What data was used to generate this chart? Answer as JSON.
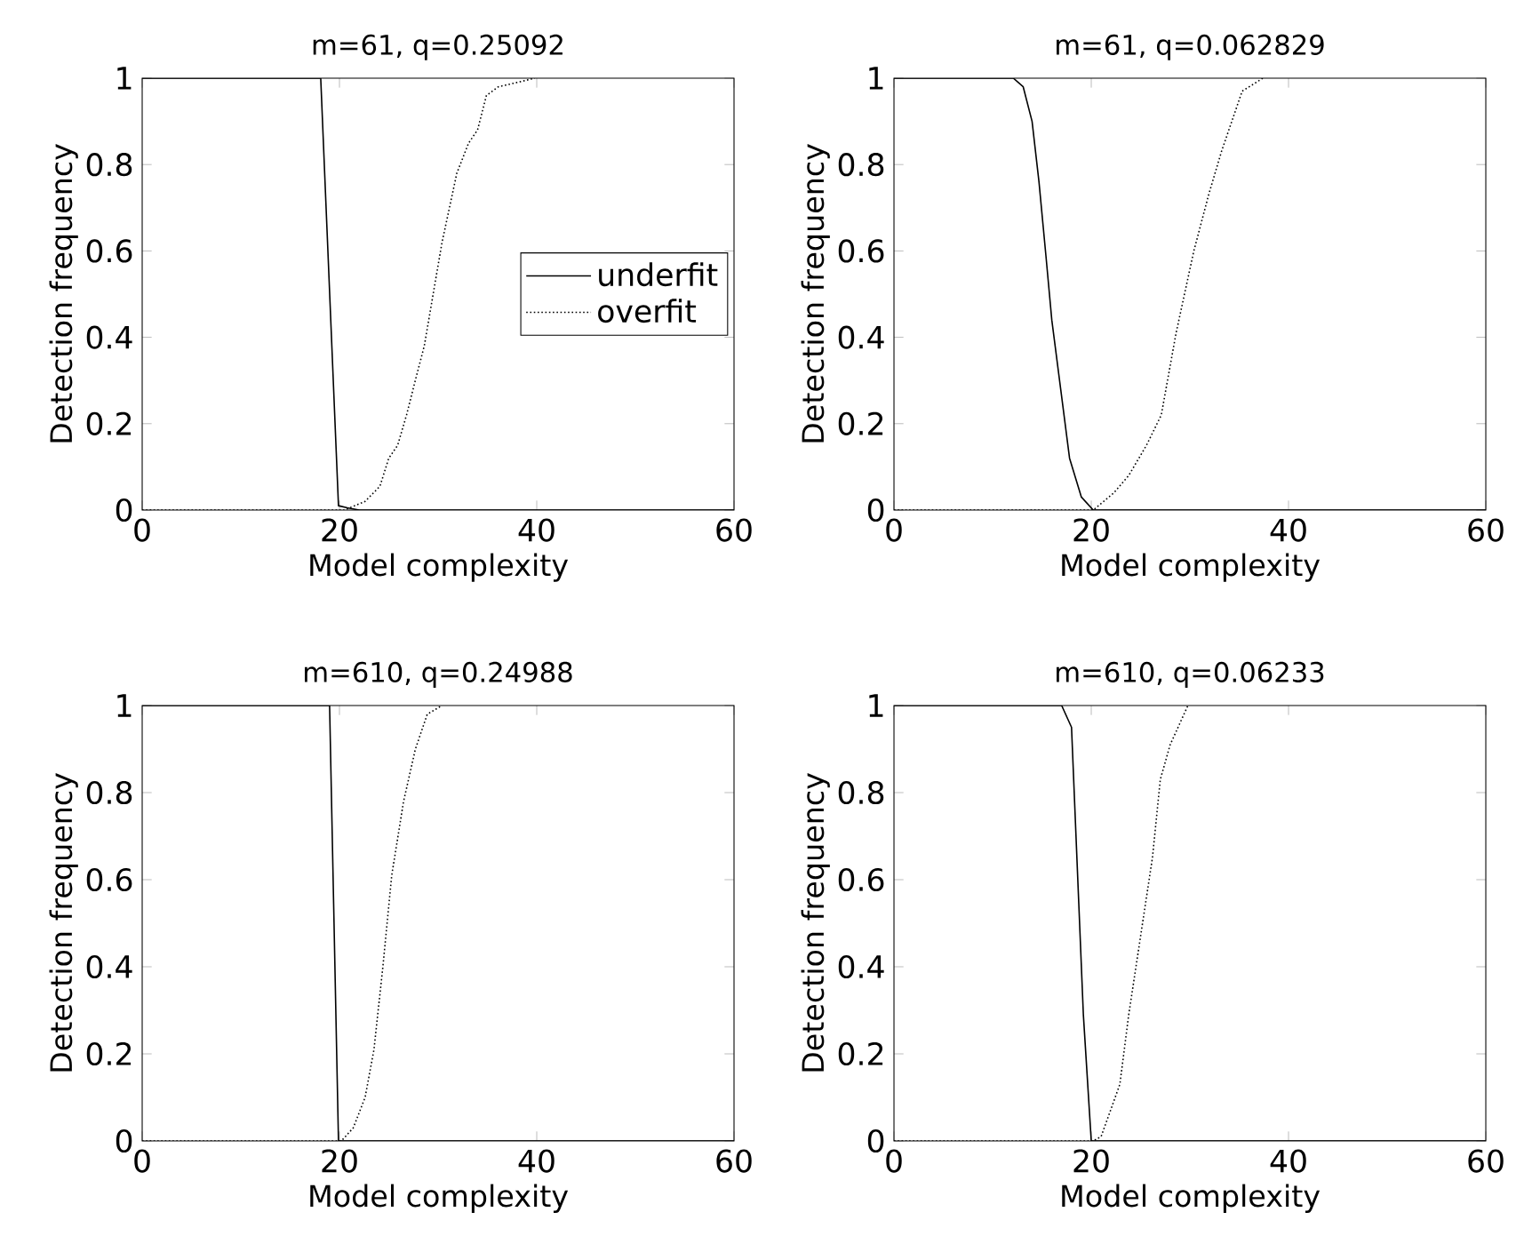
{
  "chart_data": [
    {
      "type": "line",
      "title": "m=61, q=0.25092",
      "xlabel": "Model complexity",
      "ylabel": "Detection frequency",
      "xlim": [
        0,
        60
      ],
      "ylim": [
        0,
        1
      ],
      "xticks": [
        0,
        20,
        40,
        60
      ],
      "yticks": [
        0,
        0.2,
        0.4,
        0.6,
        0.8,
        1
      ],
      "legend": "right",
      "series": [
        {
          "name": "underfit",
          "color": "#000000",
          "line_style": "solid",
          "x": [
            0,
            18.1,
            19.9,
            20.8,
            22,
            60
          ],
          "values": [
            1,
            1,
            0.01,
            0.005,
            0,
            0
          ]
        },
        {
          "name": "overfit",
          "color": "#000000",
          "line_style": "dotted",
          "x": [
            0,
            20.5,
            22.6,
            24.1,
            25,
            25.9,
            26.8,
            27.8,
            28.6,
            29.5,
            30.4,
            31.9,
            33.1,
            34,
            34.9,
            36.1,
            38,
            39.8
          ],
          "values": [
            0,
            0,
            0.02,
            0.055,
            0.12,
            0.15,
            0.22,
            0.31,
            0.38,
            0.5,
            0.62,
            0.78,
            0.85,
            0.88,
            0.96,
            0.98,
            0.99,
            1
          ]
        }
      ]
    },
    {
      "type": "line",
      "title": "m=61, q=0.062829",
      "xlabel": "Model complexity",
      "ylabel": "Detection frequency",
      "xlim": [
        0,
        60
      ],
      "ylim": [
        0,
        1
      ],
      "xticks": [
        0,
        20,
        40,
        60
      ],
      "yticks": [
        0,
        0.2,
        0.4,
        0.6,
        0.8,
        1
      ],
      "series": [
        {
          "color": "#000000",
          "line_style": "solid",
          "x": [
            0,
            12.1,
            13.1,
            14,
            14.7,
            15.4,
            16,
            16.9,
            17.8,
            19,
            20.2,
            22.6,
            60
          ],
          "values": [
            1,
            1,
            0.98,
            0.9,
            0.76,
            0.59,
            0.44,
            0.28,
            0.12,
            0.03,
            0,
            0,
            0
          ]
        },
        {
          "color": "#000000",
          "line_style": "dotted",
          "x": [
            0,
            20.2,
            22.3,
            23.8,
            25.6,
            27.1,
            28.6,
            30.4,
            31.9,
            33.2,
            35.3,
            37.4
          ],
          "values": [
            0,
            0,
            0.04,
            0.08,
            0.15,
            0.22,
            0.41,
            0.6,
            0.73,
            0.83,
            0.97,
            1
          ]
        }
      ]
    },
    {
      "type": "line",
      "title": "m=610, q=0.24988",
      "xlabel": "Model complexity",
      "ylabel": "Detection frequency",
      "xlim": [
        0,
        60
      ],
      "ylim": [
        0,
        1
      ],
      "xticks": [
        0,
        20,
        40,
        60
      ],
      "yticks": [
        0,
        0.2,
        0.4,
        0.6,
        0.8,
        1
      ],
      "series": [
        {
          "color": "#000000",
          "line_style": "solid",
          "x": [
            0,
            19,
            19.9,
            60
          ],
          "values": [
            1,
            1,
            0,
            0
          ]
        },
        {
          "color": "#000000",
          "line_style": "dotted",
          "x": [
            0,
            20.2,
            21.4,
            22.6,
            23.5,
            24.4,
            25.3,
            26.5,
            27.7,
            28.9,
            30.4
          ],
          "values": [
            0,
            0,
            0.03,
            0.1,
            0.21,
            0.4,
            0.61,
            0.78,
            0.9,
            0.98,
            1
          ]
        }
      ]
    },
    {
      "type": "line",
      "title": "m=610, q=0.06233",
      "xlabel": "Model complexity",
      "ylabel": "Detection frequency",
      "xlim": [
        0,
        60
      ],
      "ylim": [
        0,
        1
      ],
      "xticks": [
        0,
        20,
        40,
        60
      ],
      "yticks": [
        0,
        0.2,
        0.4,
        0.6,
        0.8,
        1
      ],
      "series": [
        {
          "color": "#000000",
          "line_style": "solid",
          "x": [
            0,
            17,
            18,
            19.2,
            20,
            60
          ],
          "values": [
            1,
            1,
            0.95,
            0.29,
            0,
            0
          ]
        },
        {
          "color": "#000000",
          "line_style": "dotted",
          "x": [
            0,
            20.2,
            21,
            22.9,
            23.8,
            25,
            26.2,
            27,
            28,
            29.8
          ],
          "values": [
            0,
            0,
            0.01,
            0.13,
            0.29,
            0.47,
            0.65,
            0.83,
            0.91,
            1
          ]
        }
      ]
    }
  ]
}
